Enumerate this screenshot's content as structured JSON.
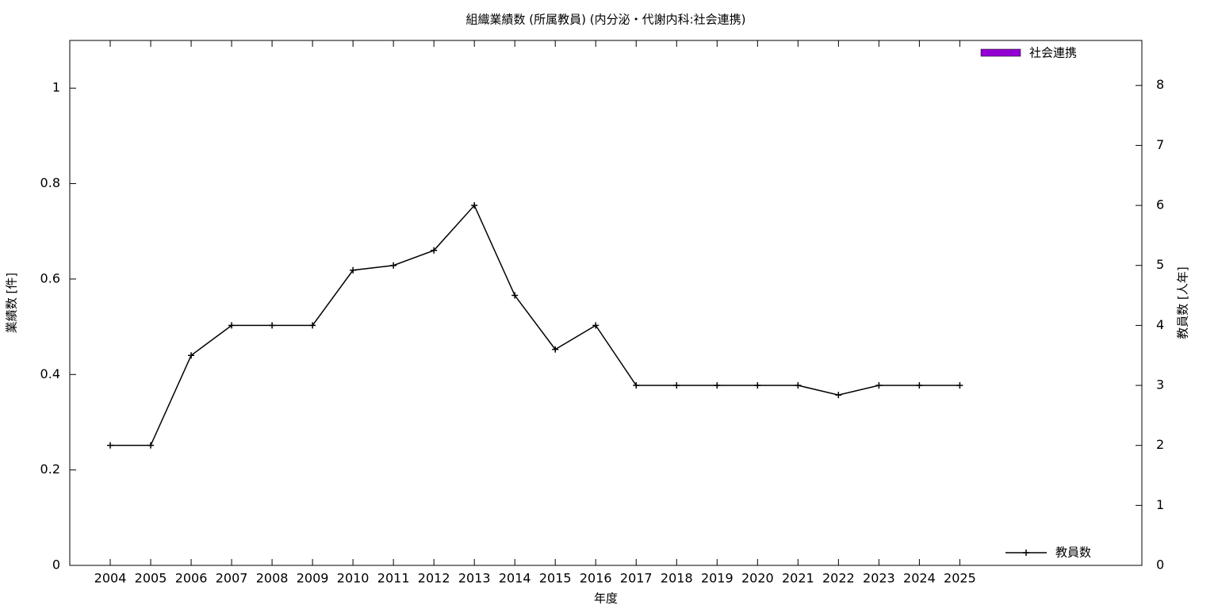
{
  "chart_data": {
    "type": "bar_line",
    "title": "組織業績数 (所属教員) (内分泌・代謝内科:社会連携)",
    "x_label": "年度",
    "y_label": "業績数 [件]",
    "y2_label": "教員数 [人年]",
    "categories": [
      "2004",
      "2005",
      "2006",
      "2007",
      "2008",
      "2009",
      "2010",
      "2011",
      "2012",
      "2013",
      "2014",
      "2015",
      "2016",
      "2017",
      "2018",
      "2019",
      "2020",
      "2021",
      "2022",
      "2023",
      "2024",
      "2025"
    ],
    "series": [
      {
        "name": "社会連携",
        "type": "bar",
        "color": "#9400d3",
        "values": [
          0,
          0,
          0,
          0,
          0,
          0,
          0,
          0,
          0,
          0,
          0,
          0,
          0,
          0,
          0,
          0,
          0,
          0,
          0,
          0,
          0,
          0
        ]
      },
      {
        "name": "教員数",
        "type": "line",
        "axis": "y2",
        "color": "#000000",
        "values": [
          2,
          2,
          3.5,
          4,
          4,
          4,
          4.92,
          5,
          5.25,
          6,
          4.5,
          3.6,
          4,
          3,
          3,
          3,
          3,
          3,
          2.84,
          3,
          3,
          3
        ]
      }
    ],
    "ylim": [
      0,
      1.1
    ],
    "yticks": [
      0,
      0.2,
      0.4,
      0.6,
      0.8,
      1
    ],
    "y2lim": [
      0,
      8.75
    ],
    "y2ticks": [
      0,
      1,
      2,
      3,
      4,
      5,
      6,
      7,
      8
    ]
  }
}
